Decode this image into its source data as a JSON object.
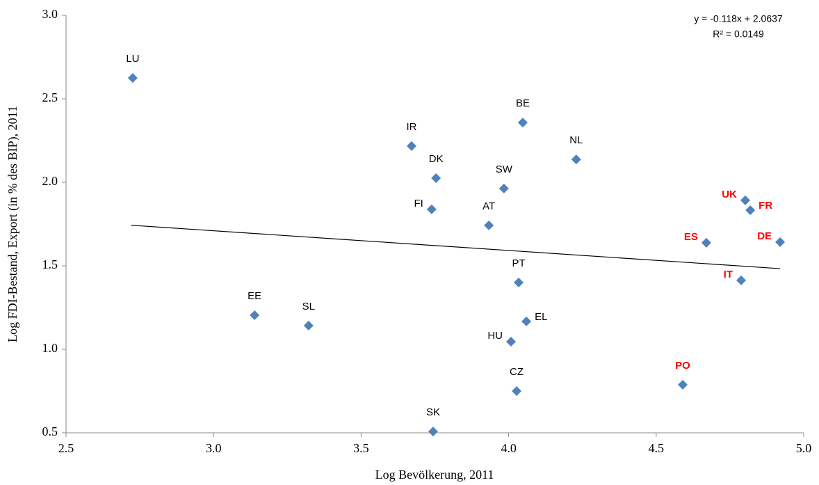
{
  "chart_data": {
    "type": "scatter",
    "x_label": "Log Bevölkerung, 2011",
    "y_label": "Log FDI-Bestand, Export (in % des BIP), 2011",
    "labels": [
      "LU",
      "BE",
      "IR",
      "NL",
      "DK",
      "SW",
      "FI",
      "AT",
      "UK",
      "FR",
      "ES",
      "DE",
      "PT",
      "IT",
      "EE",
      "SL",
      "EL",
      "HU",
      "CZ",
      "PO",
      "SK"
    ],
    "x": [
      2.726,
      4.048,
      3.671,
      4.229,
      3.754,
      3.984,
      3.739,
      3.933,
      4.802,
      4.819,
      4.67,
      4.92,
      4.034,
      4.788,
      3.139,
      3.322,
      4.06,
      4.008,
      4.027,
      4.59,
      3.744
    ],
    "values": [
      2.625,
      2.358,
      2.217,
      2.137,
      2.025,
      1.963,
      1.838,
      1.742,
      1.892,
      1.833,
      1.638,
      1.642,
      1.4,
      1.413,
      1.204,
      1.142,
      1.167,
      1.046,
      0.75,
      0.788,
      0.508
    ],
    "color": "#4f81bd",
    "label_colors": [
      "#000000",
      "#000000",
      "#000000",
      "#000000",
      "#000000",
      "#000000",
      "#000000",
      "#000000",
      "#ff0000",
      "#ff0000",
      "#ff0000",
      "#ff0000",
      "#000000",
      "#ff0000",
      "#000000",
      "#000000",
      "#000000",
      "#000000",
      "#000000",
      "#ff0000",
      "#000000"
    ],
    "trendline": {
      "x": [
        2.72,
        4.92
      ],
      "values": [
        1.743,
        1.483
      ],
      "color": "#000000",
      "equation": "y = -0.118x + 2.0637",
      "r_squared": "R² = 0.0149"
    },
    "xlim": [
      2.5,
      5.0
    ],
    "xticks": [
      {
        "value": 2.5,
        "label": "2.5"
      },
      {
        "value": 3,
        "label": "3.0"
      },
      {
        "value": 3.5,
        "label": "3.5"
      },
      {
        "value": 4,
        "label": "4.0"
      },
      {
        "value": 4.5,
        "label": "4.5"
      },
      {
        "value": 5,
        "label": "5.0"
      }
    ],
    "ylim": [
      0.5,
      3.0
    ],
    "yticks": [
      {
        "value": 0.5,
        "label": "0.5"
      },
      {
        "value": 1,
        "label": "1.0"
      },
      {
        "value": 1.5,
        "label": "1.5"
      },
      {
        "value": 2,
        "label": "2.0"
      },
      {
        "value": 2.5,
        "label": "2.5"
      },
      {
        "value": 3,
        "label": "3.0"
      }
    ],
    "grid": false
  }
}
